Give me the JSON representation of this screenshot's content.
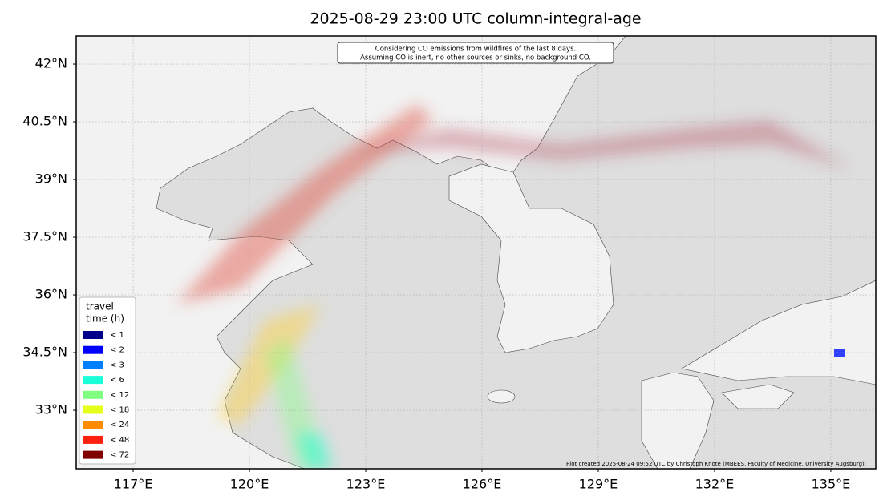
{
  "title": "2025-08-29 23:00 UTC column-integral-age",
  "annotation": [
    "Considering CO emissions from wildfires of the last 8 days.",
    "Assuming CO is inert, no other sources or sinks, no background CO."
  ],
  "credit": "Plot created 2025-08-24 09:52 UTC by Christoph Knote (MBEES, Faculty of Medicine, University Augsburg).",
  "lonlim": [
    115.53,
    136.16
  ],
  "latlim": [
    31.48,
    42.73
  ],
  "lon_ticks": [
    {
      "value": 117,
      "label": "117°E"
    },
    {
      "value": 120,
      "label": "120°E"
    },
    {
      "value": 123,
      "label": "123°E"
    },
    {
      "value": 126,
      "label": "126°E"
    },
    {
      "value": 129,
      "label": "129°E"
    },
    {
      "value": 132,
      "label": "132°E"
    },
    {
      "value": 135,
      "label": "135°E"
    }
  ],
  "lat_ticks": [
    {
      "value": 42,
      "label": "42°N"
    },
    {
      "value": 40.5,
      "label": "40.5°N"
    },
    {
      "value": 39,
      "label": "39°N"
    },
    {
      "value": 37.5,
      "label": "37.5°N"
    },
    {
      "value": 36,
      "label": "36°N"
    },
    {
      "value": 34.5,
      "label": "34.5°N"
    },
    {
      "value": 33,
      "label": "33°N"
    }
  ],
  "legend": {
    "title": [
      "travel",
      "time (h)"
    ],
    "items": [
      {
        "label": "< 1",
        "color": "#00008b"
      },
      {
        "label": "< 2",
        "color": "#0000ff"
      },
      {
        "label": "< 3",
        "color": "#0080ff"
      },
      {
        "label": "< 6",
        "color": "#1affd8"
      },
      {
        "label": "< 12",
        "color": "#80ff80"
      },
      {
        "label": "< 18",
        "color": "#e6ff1a"
      },
      {
        "label": "< 24",
        "color": "#ff8c00"
      },
      {
        "label": "< 48",
        "color": "#ff2010"
      },
      {
        "label": "< 72",
        "color": "#800000"
      }
    ]
  }
}
